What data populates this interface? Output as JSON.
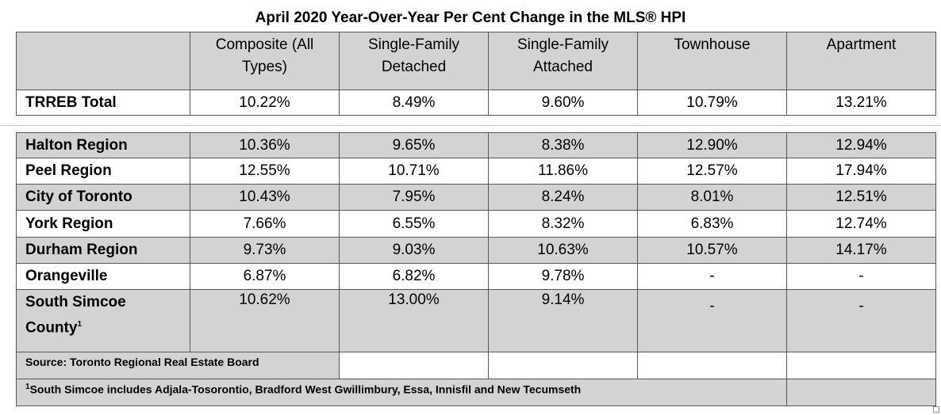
{
  "title": "April 2020 Year-Over-Year Per Cent Change in the MLS® HPI",
  "columns": [
    {
      "line1": "Composite (All",
      "line2": "Types)"
    },
    {
      "line1": "Single-Family",
      "line2": "Detached"
    },
    {
      "line1": "Single-Family",
      "line2": "Attached"
    },
    {
      "line1": "Townhouse",
      "line2": ""
    },
    {
      "line1": "Apartment",
      "line2": ""
    }
  ],
  "total": {
    "label": "TRREB Total",
    "values": [
      "10.22%",
      "8.49%",
      "9.60%",
      "10.79%",
      "13.21%"
    ]
  },
  "regions": [
    {
      "label": "Halton Region",
      "values": [
        "10.36%",
        "9.65%",
        "8.38%",
        "12.90%",
        "12.94%"
      ]
    },
    {
      "label": "Peel Region",
      "values": [
        "12.55%",
        "10.71%",
        "11.86%",
        "12.57%",
        "17.94%"
      ]
    },
    {
      "label": "City of Toronto",
      "values": [
        "10.43%",
        "7.95%",
        "8.24%",
        "8.01%",
        "12.51%"
      ]
    },
    {
      "label": "York Region",
      "values": [
        "7.66%",
        "6.55%",
        "8.32%",
        "6.83%",
        "12.74%"
      ]
    },
    {
      "label": "Durham Region",
      "values": [
        "9.73%",
        "9.03%",
        "10.63%",
        "10.57%",
        "14.17%"
      ]
    },
    {
      "label": "Orangeville",
      "values": [
        "6.87%",
        "6.82%",
        "9.78%",
        "-",
        "-"
      ]
    },
    {
      "label_line1": "South Simcoe",
      "label_line2": "County",
      "label_sup": "1",
      "values": [
        "10.62%",
        "13.00%",
        "9.14%",
        "-",
        "-"
      ]
    }
  ],
  "source": "Source: Toronto Regional Real Estate Board",
  "footnote": {
    "marker": "1",
    "text": "South Simcoe includes Adjala-Tosorontio, Bradford West Gwillimbury, Essa, Innisfil and New Tecumseth"
  }
}
